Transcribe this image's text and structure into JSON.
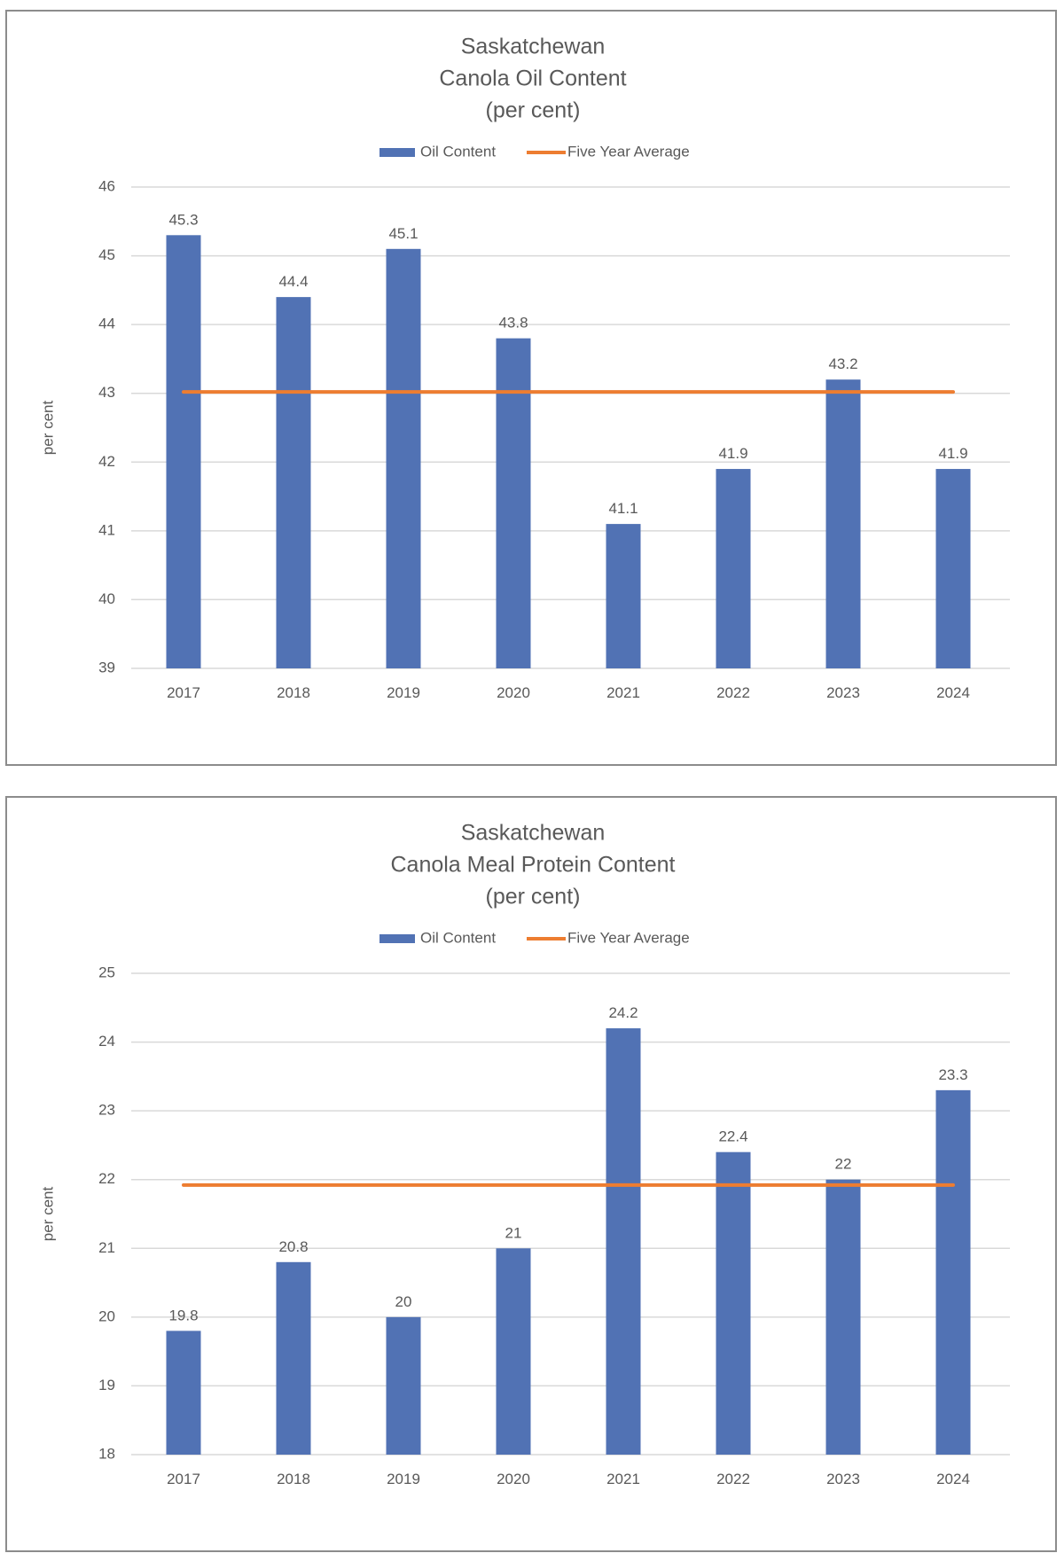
{
  "colors": {
    "bar": "#5172b4",
    "average_line": "#ed7d31",
    "gridline": "#d9d9d9",
    "text": "#595959",
    "panel_border": "#8c8c8c"
  },
  "chart_data": [
    {
      "type": "bar",
      "title": [
        "Saskatchewan",
        "Canola Oil Content",
        "(per cent)"
      ],
      "xlabel": "",
      "ylabel": "per cent",
      "ylim": [
        39,
        46
      ],
      "yticks": [
        "39",
        "40",
        "41",
        "42",
        "43",
        "44",
        "45",
        "46"
      ],
      "categories": [
        "2017",
        "2018",
        "2019",
        "2020",
        "2021",
        "2022",
        "2023",
        "2024"
      ],
      "series": [
        {
          "name": "Oil Content",
          "type": "bar",
          "values": [
            45.3,
            44.4,
            45.1,
            43.8,
            41.1,
            41.9,
            43.2,
            41.9
          ],
          "labels": [
            "45.3",
            "44.4",
            "45.1",
            "43.8",
            "41.1",
            "41.9",
            "43.2",
            "41.9"
          ]
        },
        {
          "name": "Five Year Average",
          "type": "line",
          "values": [
            43.02,
            43.02,
            43.02,
            43.02,
            43.02,
            43.02,
            43.02,
            43.02
          ]
        }
      ],
      "legend": "top",
      "grid": true
    },
    {
      "type": "bar",
      "title": [
        "Saskatchewan",
        "Canola Meal Protein Content",
        "(per cent)"
      ],
      "xlabel": "",
      "ylabel": "per cent",
      "ylim": [
        18,
        25
      ],
      "yticks": [
        "18",
        "19",
        "20",
        "21",
        "22",
        "23",
        "24",
        "25"
      ],
      "categories": [
        "2017",
        "2018",
        "2019",
        "2020",
        "2021",
        "2022",
        "2023",
        "2024"
      ],
      "series": [
        {
          "name": "Oil Content",
          "type": "bar",
          "values": [
            19.8,
            20.8,
            20,
            21,
            24.2,
            22.4,
            22,
            23.3
          ],
          "labels": [
            "19.8",
            "20.8",
            "20",
            "21",
            "24.2",
            "22.4",
            "22",
            "23.3"
          ]
        },
        {
          "name": "Five Year Average",
          "type": "line",
          "values": [
            21.92,
            21.92,
            21.92,
            21.92,
            21.92,
            21.92,
            21.92,
            21.92
          ]
        }
      ],
      "legend": "top",
      "grid": true
    }
  ]
}
